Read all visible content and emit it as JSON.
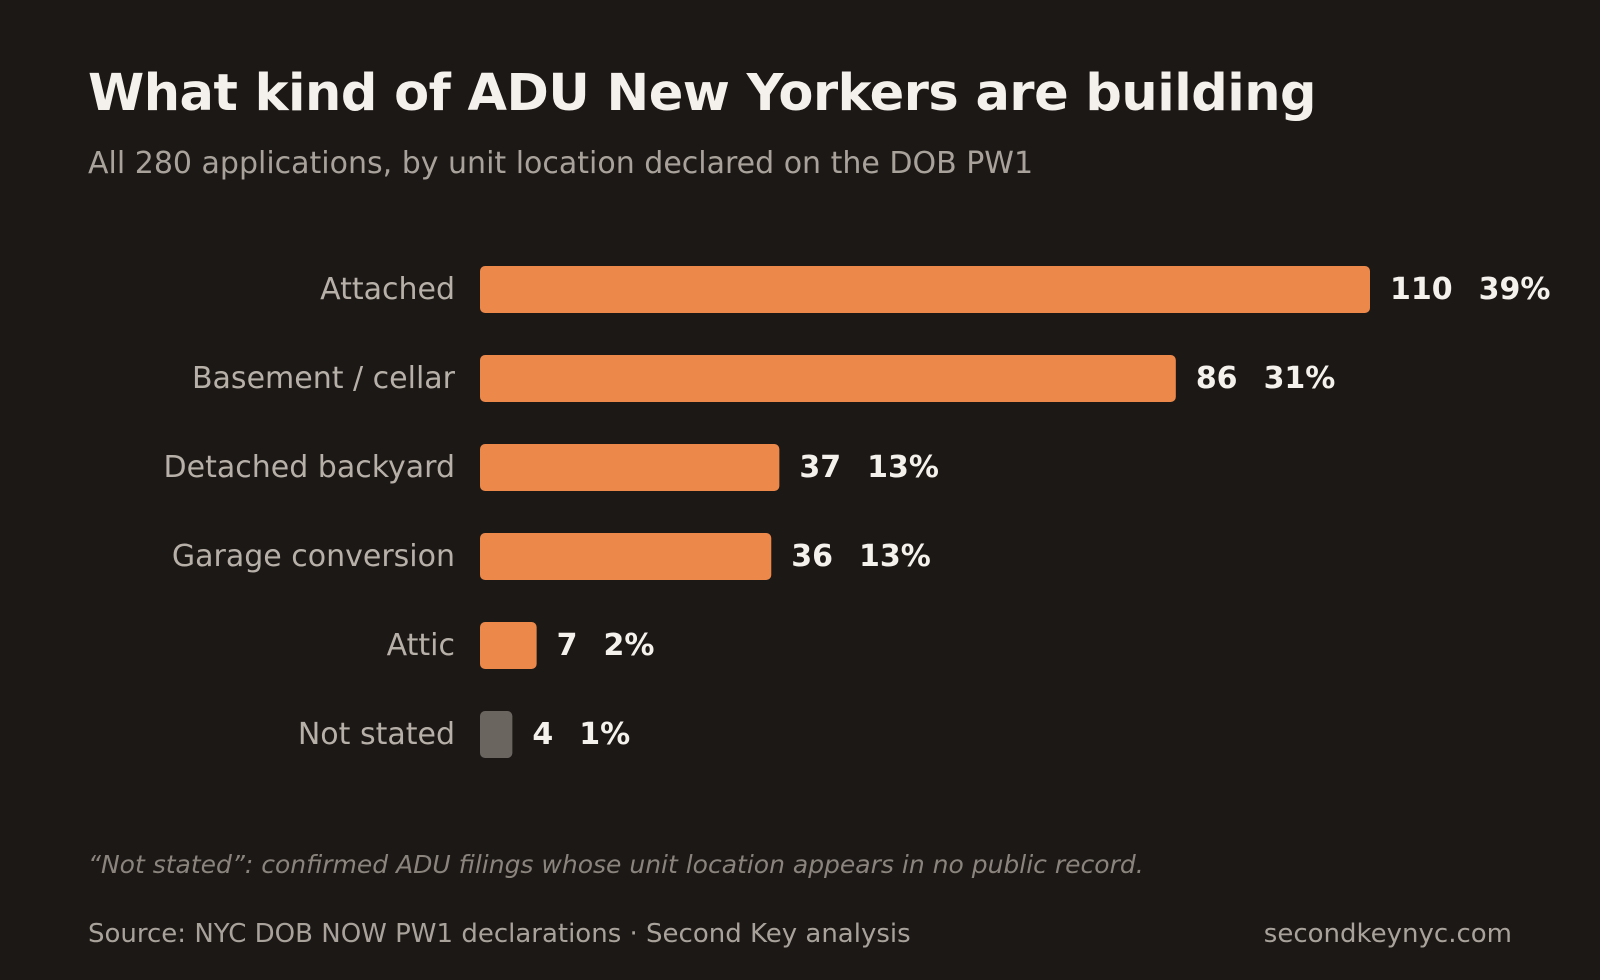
{
  "header": {
    "title": "What kind of ADU New Yorkers are building",
    "subtitle": "All 280 applications, by unit location declared on the DOB PW1"
  },
  "chart_data": {
    "type": "bar",
    "orientation": "horizontal",
    "categories": [
      "Attached",
      "Basement / cellar",
      "Detached backyard",
      "Garage conversion",
      "Attic",
      "Not stated"
    ],
    "values": [
      110,
      86,
      37,
      36,
      7,
      4
    ],
    "percent_labels": [
      "39%",
      "31%",
      "13%",
      "13%",
      "2%",
      "1%"
    ],
    "bar_colors": [
      "#ec884a",
      "#ec884a",
      "#ec884a",
      "#ec884a",
      "#ec884a",
      "#6b655f"
    ],
    "xlim": [
      0,
      110
    ],
    "grid": false,
    "legend": "none"
  },
  "footer": {
    "footnote": "“Not stated”: confirmed ADU filings whose unit location appears in no public record.",
    "source": "Source: NYC DOB NOW PW1 declarations · Second Key analysis",
    "site": "secondkeynyc.com"
  }
}
